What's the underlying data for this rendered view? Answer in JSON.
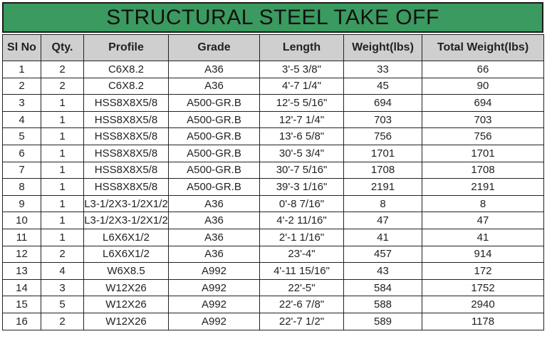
{
  "title": "STRUCTURAL STEEL TAKE OFF",
  "colors": {
    "title_bg": "#3b9a5f",
    "header_bg": "#cfcfcf"
  },
  "columns": [
    "Sl No",
    "Qty.",
    "Profile",
    "Grade",
    "Length",
    "Weight(lbs)",
    "Total Weight(lbs)"
  ],
  "rows": [
    [
      "1",
      "2",
      "C6X8.2",
      "A36",
      "3'-5 3/8\"",
      "33",
      "66"
    ],
    [
      "2",
      "2",
      "C6X8.2",
      "A36",
      "4'-7 1/4\"",
      "45",
      "90"
    ],
    [
      "3",
      "1",
      "HSS8X8X5/8",
      "A500-GR.B",
      "12'-5 5/16\"",
      "694",
      "694"
    ],
    [
      "4",
      "1",
      "HSS8X8X5/8",
      "A500-GR.B",
      "12'-7 1/4\"",
      "703",
      "703"
    ],
    [
      "5",
      "1",
      "HSS8X8X5/8",
      "A500-GR.B",
      "13'-6 5/8\"",
      "756",
      "756"
    ],
    [
      "6",
      "1",
      "HSS8X8X5/8",
      "A500-GR.B",
      "30'-5 3/4\"",
      "1701",
      "1701"
    ],
    [
      "7",
      "1",
      "HSS8X8X5/8",
      "A500-GR.B",
      "30'-7 5/16\"",
      "1708",
      "1708"
    ],
    [
      "8",
      "1",
      "HSS8X8X5/8",
      "A500-GR.B",
      "39'-3 1/16\"",
      "2191",
      "2191"
    ],
    [
      "9",
      "1",
      "L3-1/2X3-1/2X1/2",
      "A36",
      "0'-8 7/16\"",
      "8",
      "8"
    ],
    [
      "10",
      "1",
      "L3-1/2X3-1/2X1/2",
      "A36",
      "4'-2 11/16\"",
      "47",
      "47"
    ],
    [
      "11",
      "1",
      "L6X6X1/2",
      "A36",
      "2'-1 1/16\"",
      "41",
      "41"
    ],
    [
      "12",
      "2",
      "L6X6X1/2",
      "A36",
      "23'-4\"",
      "457",
      "914"
    ],
    [
      "13",
      "4",
      "W6X8.5",
      "A992",
      "4'-11 15/16\"",
      "43",
      "172"
    ],
    [
      "14",
      "3",
      "W12X26",
      "A992",
      "22'-5\"",
      "584",
      "1752"
    ],
    [
      "15",
      "5",
      "W12X26",
      "A992",
      "22'-6 7/8\"",
      "588",
      "2940"
    ],
    [
      "16",
      "2",
      "W12X26",
      "A992",
      "22'-7 1/2\"",
      "589",
      "1178"
    ]
  ]
}
